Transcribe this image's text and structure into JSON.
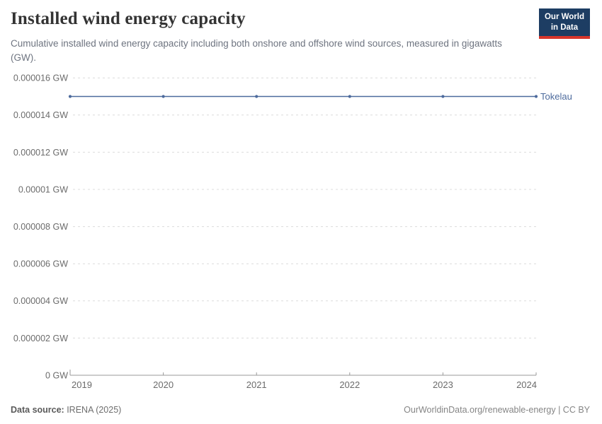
{
  "header": {
    "title": "Installed wind energy capacity",
    "subtitle": "Cumulative installed wind energy capacity including both onshore and offshore wind sources, measured in gigawatts (GW).",
    "logo_line1": "Our World",
    "logo_line2": "in Data"
  },
  "chart_data": {
    "type": "line",
    "title": "Installed wind energy capacity",
    "unit": "GW",
    "x": [
      2019,
      2020,
      2021,
      2022,
      2023,
      2024
    ],
    "xtick_labels": [
      "2019",
      "2020",
      "2021",
      "2022",
      "2023",
      "2024"
    ],
    "series": [
      {
        "name": "Tokelau",
        "color": "#4c6a9c",
        "values": [
          1.5e-05,
          1.5e-05,
          1.5e-05,
          1.5e-05,
          1.5e-05,
          1.5e-05
        ]
      }
    ],
    "ylim": [
      0,
      1.6e-05
    ],
    "yticks": [
      0,
      2e-06,
      4e-06,
      6e-06,
      8e-06,
      1e-05,
      1.2e-05,
      1.4e-05,
      1.6e-05
    ],
    "ytick_labels": [
      "0 GW",
      "0.000002 GW",
      "0.000004 GW",
      "0.000006 GW",
      "0.000008 GW",
      "0.00001 GW",
      "0.000012 GW",
      "0.000014 GW",
      "0.000016 GW"
    ],
    "grid": "horizontal-dashed",
    "legend_position": "line-end-label"
  },
  "footer": {
    "datasource_label": "Data source:",
    "datasource_value": " IRENA (2025)",
    "attribution": "OurWorldinData.org/renewable-energy | CC BY"
  },
  "colors": {
    "line": "#4c6a9c",
    "series_label": "#4c6a9c",
    "grid": "#dcdcdc",
    "axis": "#9a9a9a",
    "tick_text": "#6b6b6b",
    "title_text": "#333333",
    "subtitle_text": "#6e7480",
    "logo_bg": "#1d3d63",
    "logo_accent": "#d7352b"
  }
}
